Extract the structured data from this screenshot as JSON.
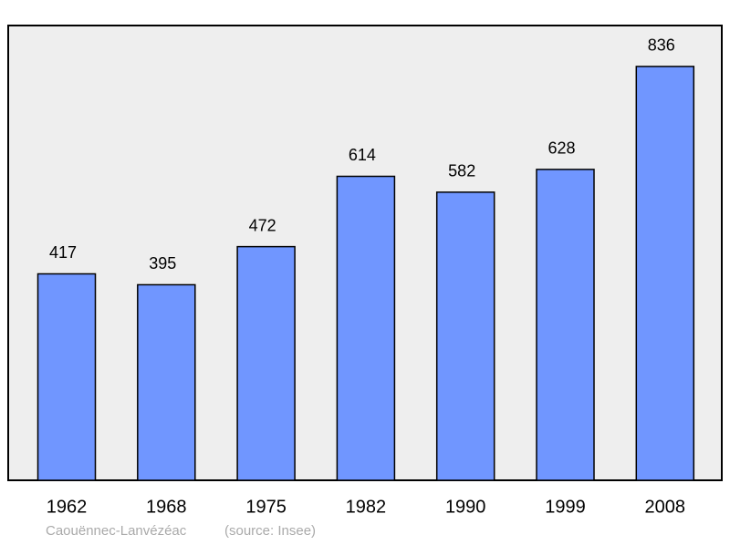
{
  "chart_data": {
    "type": "bar",
    "title": "Caouënnec-Lanvézéac",
    "source": "(source: Insee)",
    "categories": [
      "1962",
      "1968",
      "1975",
      "1982",
      "1990",
      "1999",
      "2008"
    ],
    "values": [
      417,
      395,
      472,
      614,
      582,
      628,
      836
    ],
    "color": "#7096ff"
  }
}
